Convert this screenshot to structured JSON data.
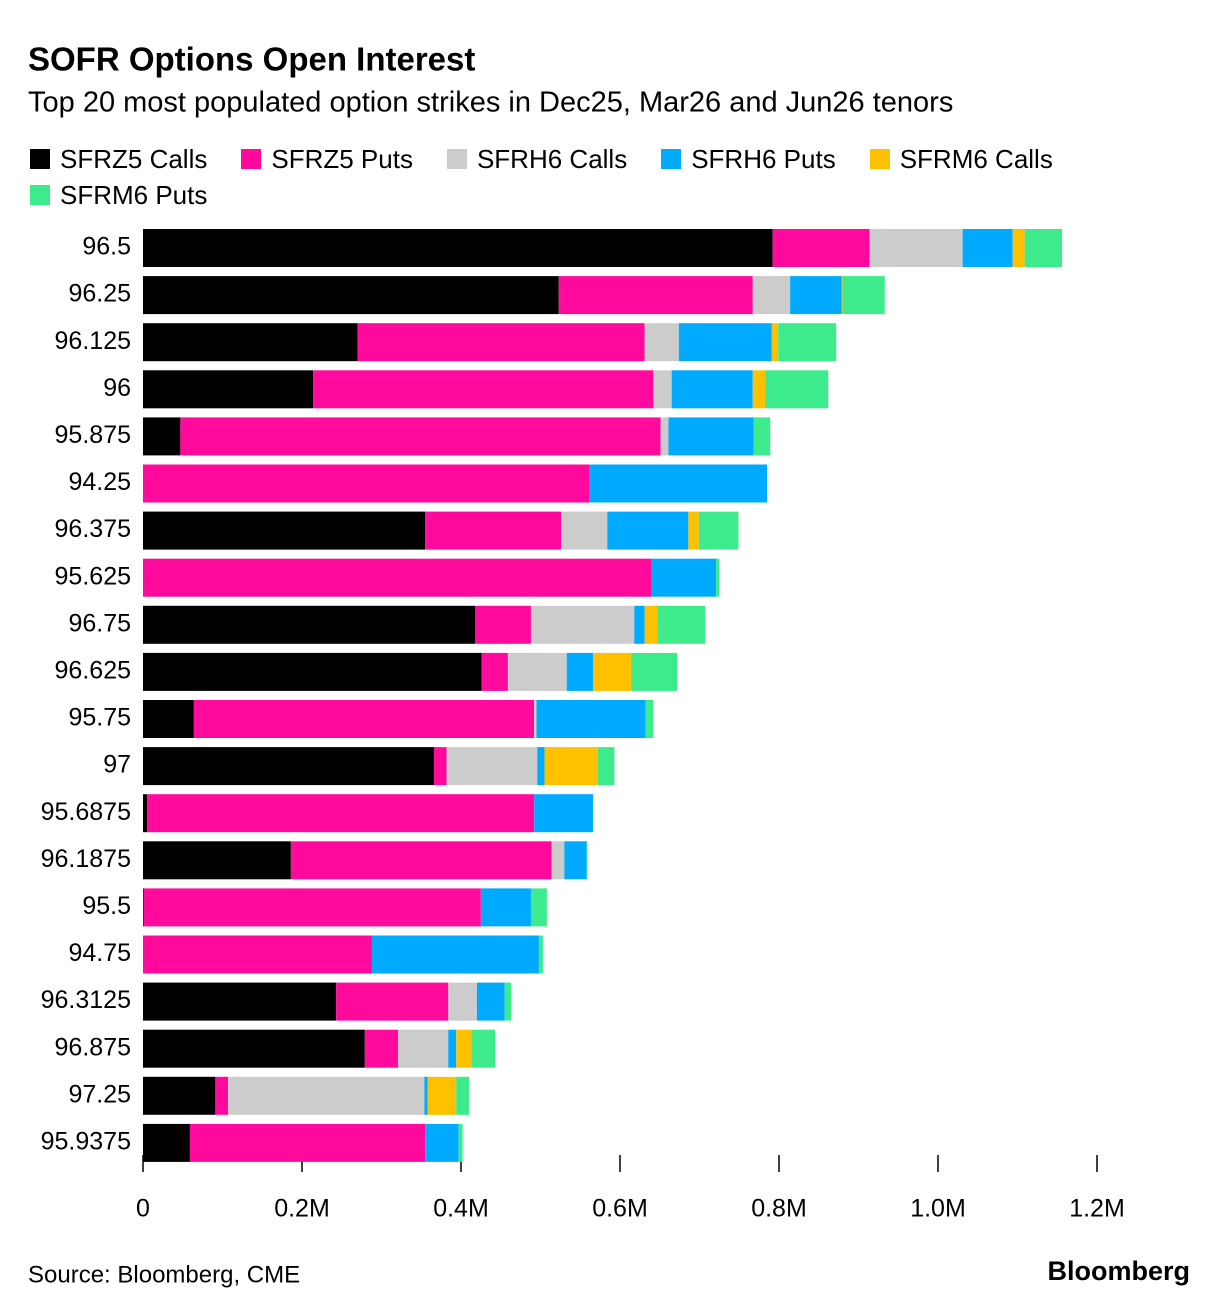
{
  "chart_data": {
    "type": "stacked-barh",
    "title": "SOFR Options Open Interest",
    "subtitle": "Top 20 most populated option strikes in Dec25, Mar26 and Jun26 tenors",
    "source": "Source: Bloomberg, CME",
    "brand": "Bloomberg",
    "categories": [
      "96.5",
      "96.25",
      "96.125",
      "96",
      "95.875",
      "94.25",
      "96.375",
      "95.625",
      "96.75",
      "96.625",
      "95.75",
      "97",
      "95.6875",
      "96.1875",
      "95.5",
      "94.75",
      "96.3125",
      "96.875",
      "97.25",
      "95.9375"
    ],
    "series": [
      {
        "name": "SFRZ5 Calls",
        "color": "#000000",
        "values": [
          792000,
          523000,
          270000,
          214000,
          47000,
          0,
          355000,
          0,
          418000,
          426000,
          64000,
          366000,
          5000,
          186000,
          1000,
          0,
          243000,
          279000,
          91000,
          59000
        ]
      },
      {
        "name": "SFRZ5 Puts",
        "color": "#ff0a9c",
        "values": [
          122000,
          244000,
          361000,
          428000,
          604000,
          562000,
          171000,
          640000,
          70000,
          33000,
          428000,
          16000,
          487000,
          328000,
          424000,
          288000,
          141000,
          42000,
          16000,
          296000
        ]
      },
      {
        "name": "SFRH6 Calls",
        "color": "#cccccc",
        "values": [
          117000,
          47000,
          43000,
          23000,
          10000,
          0,
          58000,
          0,
          130000,
          74000,
          3000,
          114000,
          0,
          16000,
          0,
          0,
          36000,
          63000,
          247000,
          0
        ]
      },
      {
        "name": "SFRH6 Puts",
        "color": "#00aaff",
        "values": [
          63000,
          65000,
          117000,
          102000,
          107000,
          223000,
          102000,
          81000,
          13000,
          33000,
          137000,
          9000,
          74000,
          28000,
          63000,
          210000,
          35000,
          10000,
          4000,
          42000
        ]
      },
      {
        "name": "SFRM6 Calls",
        "color": "#ffc000",
        "values": [
          15000,
          1000,
          8000,
          16000,
          0,
          0,
          13000,
          0,
          16000,
          48000,
          0,
          67000,
          0,
          0,
          0,
          0,
          0,
          19000,
          36000,
          0
        ]
      },
      {
        "name": "SFRM6 Puts",
        "color": "#3eeb8c",
        "values": [
          47000,
          53000,
          73000,
          79000,
          21000,
          0,
          50000,
          4000,
          60000,
          58000,
          10000,
          21000,
          0,
          1000,
          20000,
          5000,
          8000,
          30000,
          16000,
          5000
        ]
      }
    ],
    "xlim": [
      0,
      1200000
    ],
    "xticks": [
      0,
      {
        "value": 200000,
        "label": "0.2M"
      },
      {
        "value": 400000,
        "label": "0.4M"
      },
      {
        "value": 600000,
        "label": "0.6M"
      },
      {
        "value": 800000,
        "label": "0.8M"
      },
      {
        "value": 1000000,
        "label": "1.0M"
      },
      {
        "value": 1200000,
        "label": "1.2M"
      }
    ]
  }
}
